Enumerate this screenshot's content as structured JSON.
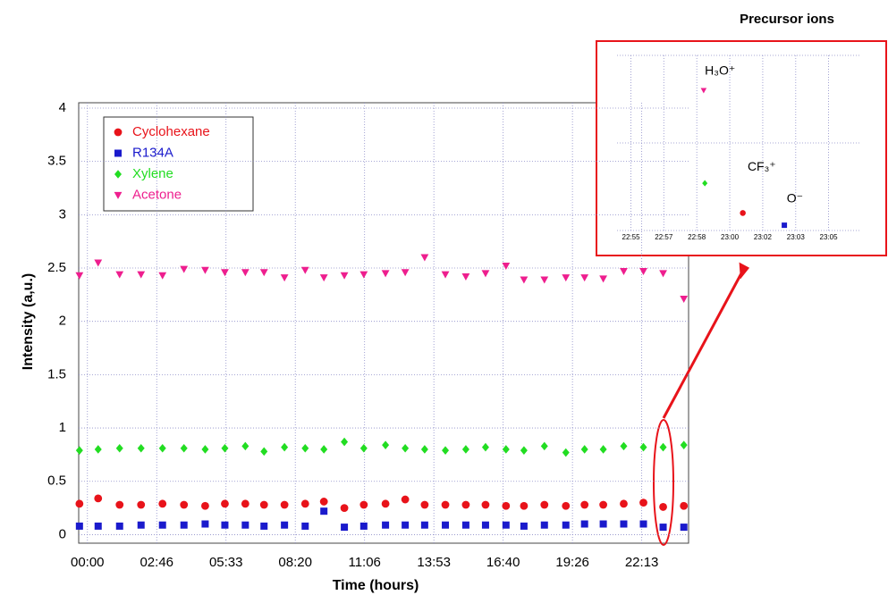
{
  "chart_data": [
    {
      "type": "scatter",
      "x_label": "Time (hours)",
      "y_label": "Intensity (a,u.)",
      "x": [
        -0.32,
        0.43,
        1.29,
        2.15,
        3.01,
        3.87,
        4.72,
        5.51,
        6.33,
        7.08,
        7.9,
        8.73,
        9.48,
        10.3,
        11.08,
        11.95,
        12.74,
        13.52,
        14.35,
        15.17,
        15.96,
        16.78,
        17.5,
        18.32,
        19.18,
        19.93,
        20.68,
        21.5,
        22.29,
        23.08,
        23.91
      ],
      "series": [
        {
          "name": "Cyclohexane",
          "color": "#e8131a",
          "marker": "circle",
          "values": [
            0.29,
            0.34,
            0.28,
            0.28,
            0.29,
            0.28,
            0.27,
            0.29,
            0.29,
            0.28,
            0.28,
            0.29,
            0.31,
            0.25,
            0.28,
            0.29,
            0.33,
            0.28,
            0.28,
            0.28,
            0.28,
            0.27,
            0.27,
            0.28,
            0.27,
            0.28,
            0.28,
            0.29,
            0.3,
            0.26,
            0.27
          ]
        },
        {
          "name": "R134A",
          "color": "#1a1acc",
          "marker": "square",
          "values": [
            0.08,
            0.08,
            0.08,
            0.09,
            0.09,
            0.09,
            0.1,
            0.09,
            0.09,
            0.08,
            0.09,
            0.08,
            0.22,
            0.07,
            0.08,
            0.09,
            0.09,
            0.09,
            0.09,
            0.09,
            0.09,
            0.09,
            0.08,
            0.09,
            0.09,
            0.1,
            0.1,
            0.1,
            0.1,
            0.07,
            0.07
          ]
        },
        {
          "name": "Xylene",
          "color": "#22dd22",
          "marker": "diamond",
          "values": [
            0.79,
            0.8,
            0.81,
            0.81,
            0.81,
            0.81,
            0.8,
            0.81,
            0.83,
            0.78,
            0.82,
            0.81,
            0.8,
            0.87,
            0.81,
            0.84,
            0.81,
            0.8,
            0.79,
            0.8,
            0.82,
            0.8,
            0.79,
            0.83,
            0.77,
            0.8,
            0.8,
            0.83,
            0.82,
            0.82,
            0.84
          ]
        },
        {
          "name": "Acetone",
          "color": "#ee1e8e",
          "marker": "triangle-down",
          "values": [
            2.43,
            2.55,
            2.44,
            2.44,
            2.43,
            2.49,
            2.48,
            2.46,
            2.46,
            2.46,
            2.41,
            2.48,
            2.41,
            2.43,
            2.44,
            2.45,
            2.46,
            2.6,
            2.44,
            2.42,
            2.45,
            2.52,
            2.39,
            2.39,
            2.41,
            2.41,
            2.4,
            2.47,
            2.47,
            2.45,
            2.21
          ]
        }
      ],
      "xlim": [
        -0.35,
        24.1
      ],
      "xticks": [
        {
          "value": 0,
          "label": "00:00"
        },
        {
          "value": 2.7778,
          "label": "02:46"
        },
        {
          "value": 5.5556,
          "label": "05:33"
        },
        {
          "value": 8.3333,
          "label": "08:20"
        },
        {
          "value": 11.1111,
          "label": "11:06"
        },
        {
          "value": 13.8889,
          "label": "13:53"
        },
        {
          "value": 16.6667,
          "label": "16:40"
        },
        {
          "value": 19.4444,
          "label": "19:26"
        },
        {
          "value": 22.2222,
          "label": "22:13"
        }
      ],
      "ylim": [
        -0.08,
        4.05
      ],
      "yticks": [
        0,
        0.5,
        1,
        1.5,
        2,
        2.5,
        3,
        3.5,
        4
      ],
      "grid": true,
      "legend": "upper left"
    },
    {
      "type": "scatter",
      "title": "Precursor ions",
      "series": [
        {
          "color": "#ee1e8e",
          "marker": "triangle-down",
          "x": [
            22.978
          ],
          "values": [
            0.8
          ]
        },
        {
          "color": "#22dd22",
          "marker": "diamond",
          "x": [
            22.979
          ],
          "values": [
            0.27
          ]
        },
        {
          "color": "#e8131a",
          "marker": "circle",
          "x": [
            23.011
          ],
          "values": [
            0.1
          ]
        },
        {
          "color": "#1a1acc",
          "marker": "square",
          "x": [
            23.046
          ],
          "values": [
            0.03
          ]
        }
      ],
      "annotations": [
        {
          "text": "H₃O⁺",
          "x": 22.979,
          "y": 0.91
        },
        {
          "text": "CF₃⁺",
          "x": 23.015,
          "y": 0.36
        },
        {
          "text": "O⁻",
          "x": 23.048,
          "y": 0.18
        }
      ],
      "xlim": [
        22.905,
        23.11
      ],
      "xticks": [
        {
          "value": 22.9167,
          "label": "22:55"
        },
        {
          "value": 22.9444,
          "label": "22:57"
        },
        {
          "value": 22.9722,
          "label": "22:58"
        },
        {
          "value": 23.0,
          "label": "23:00"
        },
        {
          "value": 23.0278,
          "label": "23:02"
        },
        {
          "value": 23.0556,
          "label": "23:03"
        },
        {
          "value": 23.0833,
          "label": "23:05"
        }
      ],
      "ylim": [
        0,
        1
      ],
      "yticks": [
        0,
        0.5,
        1
      ],
      "grid": true
    }
  ]
}
